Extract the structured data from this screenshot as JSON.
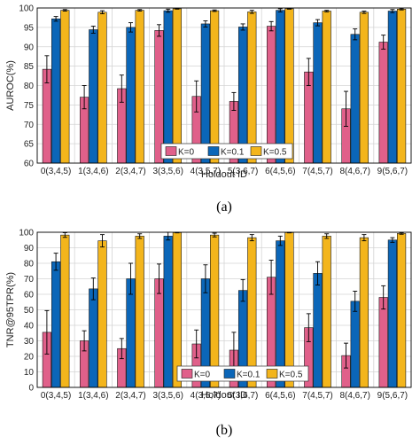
{
  "legend_labels": [
    "K=0",
    "K=0.1",
    "K=0.5"
  ],
  "colors": {
    "k0": "#e0608a",
    "k01": "#0b66b8",
    "k05": "#f3b51c",
    "frame": "#000000",
    "grid": "#d4d4d4"
  },
  "chart_data": [
    {
      "type": "bar",
      "panel_label": "(a)",
      "xlabel": "Holdout ID",
      "ylabel": "AUROC(%)",
      "ylim": [
        60,
        100
      ],
      "yticks": [
        60,
        65,
        70,
        75,
        80,
        85,
        90,
        95,
        100
      ],
      "grid": true,
      "legend_position": "bottom-center",
      "categories": [
        "0(3,4,5)",
        "1(3,4,6)",
        "2(3,4,7)",
        "3(3,5,6)",
        "4(3,5,7)",
        "5(3,6,7)",
        "6(4,5,6)",
        "7(4,5,7)",
        "8(4,6,7)",
        "9(5,6,7)"
      ],
      "series": [
        {
          "name": "K=0",
          "values": [
            84.2,
            77.0,
            79.2,
            94.2,
            77.2,
            75.9,
            95.3,
            83.5,
            74.0,
            91.2
          ],
          "errors": [
            3.5,
            3.0,
            3.5,
            1.5,
            4.0,
            2.3,
            1.2,
            3.5,
            4.5,
            1.8
          ]
        },
        {
          "name": "K=0.1",
          "values": [
            97.2,
            94.4,
            95.0,
            99.3,
            95.9,
            95.1,
            99.4,
            96.2,
            93.2,
            99.2
          ],
          "errors": [
            0.6,
            0.9,
            1.2,
            0.4,
            0.8,
            0.8,
            0.4,
            0.8,
            1.4,
            0.4
          ]
        },
        {
          "name": "K=0.5",
          "values": [
            99.4,
            98.9,
            99.4,
            99.8,
            99.3,
            99.0,
            99.8,
            99.2,
            98.9,
            99.7
          ],
          "errors": [
            0.2,
            0.4,
            0.2,
            0.1,
            0.2,
            0.4,
            0.1,
            0.2,
            0.3,
            0.2
          ]
        }
      ]
    },
    {
      "type": "bar",
      "panel_label": "(b)",
      "xlabel": "Holdout ID",
      "ylabel": "TNR@95TPR(%)",
      "ylim": [
        0,
        100
      ],
      "yticks": [
        0,
        10,
        20,
        30,
        40,
        50,
        60,
        70,
        80,
        90,
        100
      ],
      "grid": true,
      "legend_position": "bottom-center",
      "categories": [
        "0(3,4,5)",
        "1(3,4,6)",
        "2(3,4,7)",
        "3(3,5,6)",
        "4(3,5,7)",
        "5(3,6,7)",
        "6(4,5,6)",
        "7(4,5,7)",
        "8(4,6,7)",
        "9(5,6,7)"
      ],
      "series": [
        {
          "name": "K=0",
          "values": [
            35.5,
            30.0,
            25.0,
            70.0,
            28.0,
            24.0,
            71.0,
            38.5,
            20.5,
            58.0
          ],
          "errors": [
            14.0,
            6.5,
            6.5,
            9.5,
            9.0,
            11.5,
            11.0,
            9.0,
            8.0,
            7.5
          ]
        },
        {
          "name": "K=0.1",
          "values": [
            81.0,
            63.5,
            70.0,
            97.5,
            70.0,
            62.5,
            94.5,
            73.5,
            55.5,
            95.0
          ],
          "errors": [
            5.5,
            7.0,
            10.0,
            2.5,
            9.0,
            7.0,
            3.0,
            7.5,
            6.5,
            1.5
          ]
        },
        {
          "name": "K=0.5",
          "values": [
            98.2,
            94.5,
            97.5,
            99.8,
            98.2,
            96.5,
            99.8,
            97.5,
            96.5,
            99.2
          ],
          "errors": [
            1.5,
            4.0,
            1.5,
            0.2,
            1.2,
            2.0,
            0.2,
            1.5,
            2.0,
            0.5
          ]
        }
      ]
    }
  ]
}
